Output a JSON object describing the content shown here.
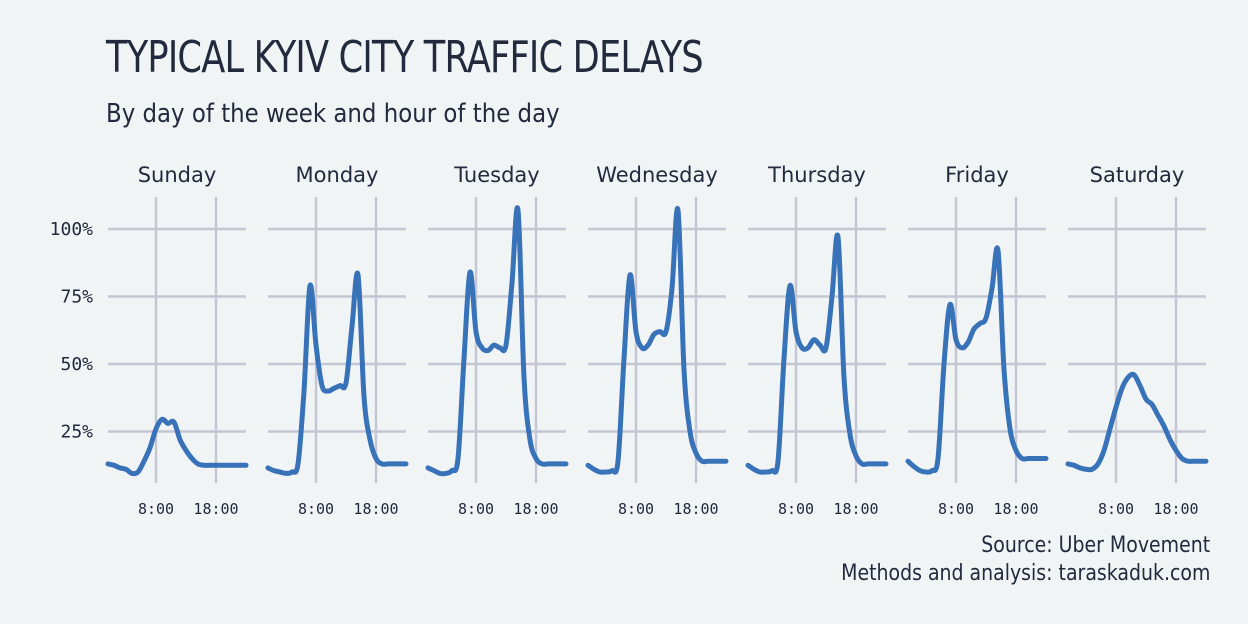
{
  "title": "TYPICAL KYIV CITY TRAFFIC DELAYS",
  "subtitle": "By day of the week and hour of the day",
  "caption": {
    "source": "Source: Uber Movement",
    "methods": "Methods and analysis: taraskaduk.com"
  },
  "chart_data": {
    "type": "line",
    "facet_by": "day",
    "x_unit": "hour",
    "xlim": [
      0,
      23
    ],
    "ylim": [
      8,
      108
    ],
    "y_ticks": [
      25,
      50,
      75,
      100
    ],
    "y_tick_labels": [
      "25%",
      "50%",
      "75%",
      "100%"
    ],
    "x_ticks": [
      8,
      18
    ],
    "x_tick_labels": [
      "8:00",
      "18:00"
    ],
    "grid": true,
    "line_color": "#3872b8",
    "x": [
      0,
      1,
      2,
      3,
      4,
      5,
      6,
      7,
      8,
      9,
      10,
      11,
      12,
      13,
      14,
      15,
      16,
      17,
      18,
      19,
      20,
      21,
      22,
      23
    ],
    "series": [
      {
        "name": "Sunday",
        "values": [
          13,
          12.5,
          11.5,
          11,
          9.5,
          10,
          14,
          19,
          26,
          29.5,
          28,
          28.5,
          22,
          18,
          15,
          13,
          12.5,
          12.5,
          12.5,
          12.5,
          12.5,
          12.5,
          12.5,
          12.5
        ]
      },
      {
        "name": "Monday",
        "values": [
          11.5,
          10.5,
          10,
          9.5,
          10,
          13,
          40,
          79,
          57,
          42,
          40,
          41,
          42,
          43,
          64,
          83,
          38,
          22,
          15,
          13,
          13,
          13,
          13,
          13
        ]
      },
      {
        "name": "Tuesday",
        "values": [
          11.5,
          10.5,
          9.5,
          9.5,
          10.5,
          15,
          52,
          84,
          62,
          56,
          55,
          57,
          56,
          57,
          80,
          107,
          45,
          22,
          15,
          13,
          13,
          13,
          13,
          13
        ]
      },
      {
        "name": "Wednesday",
        "values": [
          12.5,
          11,
          10,
          10,
          10.5,
          14,
          52,
          83,
          62,
          56,
          57,
          61,
          62,
          62,
          78,
          107,
          48,
          25,
          17,
          14,
          14,
          14,
          14,
          14
        ]
      },
      {
        "name": "Thursday",
        "values": [
          12.5,
          11,
          10,
          10,
          10.5,
          14,
          52,
          79,
          62,
          56,
          56,
          59,
          57,
          56,
          75,
          97,
          45,
          24,
          16,
          13,
          13,
          13,
          13,
          13
        ]
      },
      {
        "name": "Friday",
        "values": [
          14,
          12,
          10.5,
          10,
          10.5,
          15,
          50,
          72,
          59,
          56,
          58,
          63,
          65,
          67,
          78,
          92,
          48,
          26,
          18,
          15,
          15,
          15,
          15,
          15
        ]
      },
      {
        "name": "Saturday",
        "values": [
          13,
          12.5,
          11.5,
          11,
          11,
          13,
          18,
          26,
          34,
          41,
          45,
          46,
          42,
          37,
          35,
          31,
          27,
          22,
          18,
          15,
          14,
          14,
          14,
          14
        ]
      }
    ]
  }
}
